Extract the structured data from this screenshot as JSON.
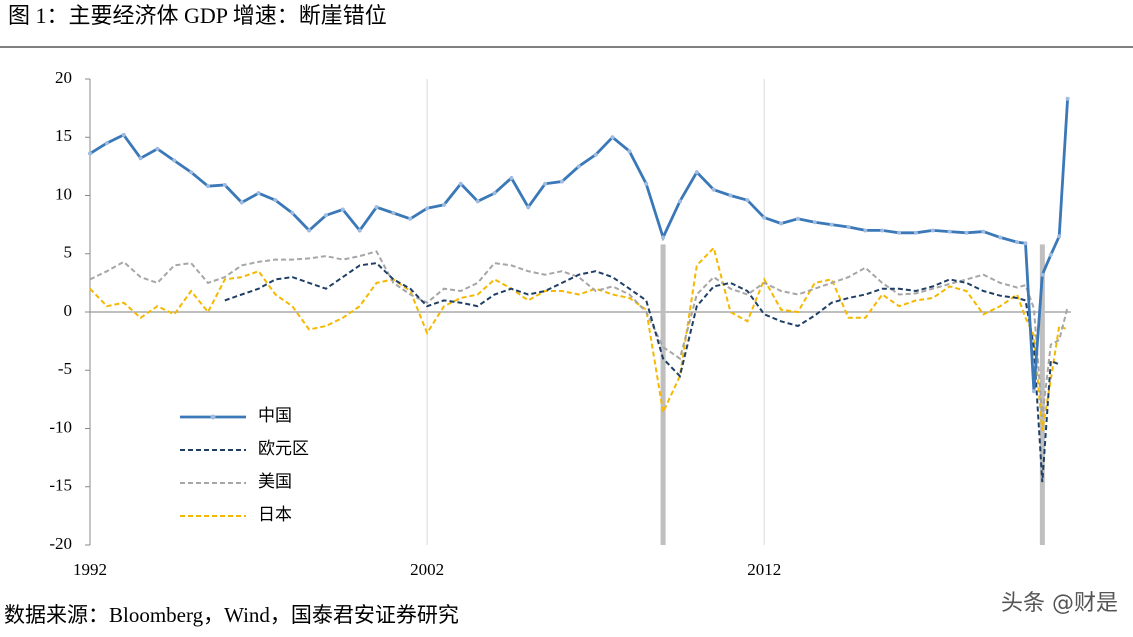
{
  "chart_data": {
    "type": "line",
    "title": "图 1：主要经济体 GDP 增速：断崖错位",
    "source": "数据来源：Bloomberg，Wind，国泰君安证券研究",
    "watermark": "头条 @财是",
    "x": [
      1992.0,
      1992.5,
      1993.0,
      1993.5,
      1994.0,
      1994.5,
      1995.0,
      1995.5,
      1996.0,
      1996.5,
      1997.0,
      1997.5,
      1998.0,
      1998.5,
      1999.0,
      1999.5,
      2000.0,
      2000.5,
      2001.0,
      2001.5,
      2002.0,
      2002.5,
      2003.0,
      2003.5,
      2004.0,
      2004.5,
      2005.0,
      2005.5,
      2006.0,
      2006.5,
      2007.0,
      2007.5,
      2008.0,
      2008.5,
      2009.0,
      2009.5,
      2010.0,
      2010.5,
      2011.0,
      2011.5,
      2012.0,
      2012.5,
      2013.0,
      2013.5,
      2014.0,
      2014.5,
      2015.0,
      2015.5,
      2016.0,
      2016.5,
      2017.0,
      2017.5,
      2018.0,
      2018.5,
      2019.0,
      2019.5,
      2019.75,
      2020.0,
      2020.25,
      2020.5,
      2020.75,
      2021.0
    ],
    "series": [
      {
        "name": "中国",
        "color": "#3a78b8",
        "dash": false,
        "markers": true,
        "values": [
          13.6,
          14.5,
          15.2,
          13.2,
          14.0,
          13.0,
          12.0,
          10.8,
          10.9,
          9.4,
          10.2,
          9.6,
          8.5,
          7.0,
          8.3,
          8.8,
          7.0,
          9.0,
          8.5,
          8.0,
          8.9,
          9.2,
          11.0,
          9.5,
          10.2,
          11.5,
          9.0,
          11.0,
          11.2,
          12.5,
          13.5,
          15.0,
          13.8,
          11.0,
          6.4,
          9.5,
          12.0,
          10.5,
          10.0,
          9.6,
          8.1,
          7.6,
          8.0,
          7.7,
          7.5,
          7.3,
          7.0,
          7.0,
          6.8,
          6.8,
          7.0,
          6.9,
          6.8,
          6.9,
          6.4,
          6.0,
          5.9,
          -6.8,
          3.2,
          4.9,
          6.5,
          18.3
        ]
      },
      {
        "name": "欧元区",
        "color": "#1f3f66",
        "dash": true,
        "markers": false,
        "values": [
          null,
          null,
          null,
          null,
          null,
          null,
          null,
          null,
          1.0,
          1.5,
          2.0,
          2.8,
          3.0,
          2.5,
          2.0,
          3.0,
          4.0,
          4.2,
          2.8,
          2.0,
          0.5,
          1.0,
          0.8,
          0.5,
          1.5,
          2.0,
          1.5,
          1.8,
          2.5,
          3.2,
          3.5,
          3.0,
          2.0,
          1.0,
          -4.0,
          -5.5,
          0.5,
          2.2,
          2.5,
          1.8,
          -0.2,
          -0.8,
          -1.2,
          -0.3,
          0.8,
          1.2,
          1.5,
          2.0,
          2.0,
          1.8,
          2.2,
          2.8,
          2.5,
          1.8,
          1.4,
          1.2,
          1.0,
          -3.0,
          -14.6,
          -4.2,
          -4.5,
          null
        ]
      },
      {
        "name": "美国",
        "color": "#a6a6a6",
        "dash": true,
        "markers": false,
        "values": [
          2.8,
          3.5,
          4.3,
          3.0,
          2.5,
          4.0,
          4.2,
          2.5,
          3.0,
          4.0,
          4.3,
          4.5,
          4.5,
          4.6,
          4.8,
          4.5,
          4.8,
          5.2,
          2.5,
          1.5,
          0.8,
          2.0,
          1.8,
          2.5,
          4.2,
          4.0,
          3.5,
          3.2,
          3.5,
          3.0,
          1.8,
          2.2,
          1.5,
          0.0,
          -3.0,
          -4.0,
          1.5,
          3.0,
          2.0,
          1.5,
          2.5,
          1.8,
          1.5,
          2.0,
          2.5,
          3.0,
          3.8,
          2.5,
          1.5,
          1.6,
          2.0,
          2.4,
          2.8,
          3.2,
          2.5,
          2.1,
          2.3,
          0.3,
          -9.0,
          -2.8,
          -2.4,
          0.4
        ]
      },
      {
        "name": "日本",
        "color": "#f5b800",
        "dash": true,
        "markers": false,
        "values": [
          2.0,
          0.5,
          0.8,
          -0.5,
          0.5,
          -0.2,
          1.8,
          0.0,
          2.8,
          3.0,
          3.5,
          1.5,
          0.5,
          -1.5,
          -1.2,
          -0.5,
          0.5,
          2.5,
          2.8,
          1.8,
          -1.8,
          0.5,
          1.2,
          1.5,
          2.8,
          2.0,
          1.0,
          1.8,
          1.8,
          1.5,
          2.0,
          1.5,
          1.2,
          0.2,
          -8.6,
          -5.5,
          4.0,
          5.5,
          0.0,
          -0.8,
          2.8,
          0.2,
          0.0,
          2.5,
          2.8,
          -0.5,
          -0.5,
          1.5,
          0.5,
          1.0,
          1.2,
          2.2,
          1.8,
          -0.2,
          0.5,
          1.5,
          -0.5,
          -2.0,
          -10.2,
          -5.8,
          -1.2,
          -1.5
        ]
      }
    ],
    "highlight_x": [
      2009.0,
      2020.25
    ],
    "highlight_top": 5.8,
    "xlim": [
      1992,
      2021.1
    ],
    "xticks": [
      1992,
      2002,
      2012
    ],
    "ylim": [
      -20,
      20
    ],
    "yticks": [
      -20,
      -15,
      -10,
      -5,
      0,
      5,
      10,
      15,
      20
    ],
    "grid": true
  }
}
